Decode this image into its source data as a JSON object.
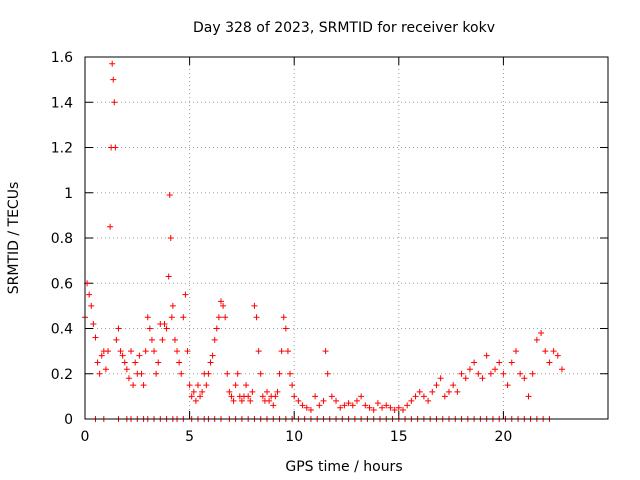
{
  "chart_data": {
    "type": "scatter",
    "title": "Day 328 of 2023, SRMTID for receiver kokv",
    "xlabel": "GPS time / hours",
    "ylabel": "SRMTID / TECUs",
    "xlim": [
      0,
      25
    ],
    "ylim": [
      0,
      1.6
    ],
    "x_ticks": [
      0,
      5,
      10,
      15,
      20
    ],
    "x_tick_labels": [
      "0",
      "5",
      "10",
      "15",
      "20"
    ],
    "y_ticks": [
      0,
      0.2,
      0.4,
      0.6,
      0.8,
      1,
      1.2,
      1.4,
      1.6
    ],
    "y_tick_labels": [
      "0",
      "0.2",
      "0.4",
      "0.6",
      "0.8",
      "1",
      "1.2",
      "1.4",
      "1.6"
    ],
    "grid": true,
    "marker": "plus",
    "color": "#ff0000",
    "series": [
      {
        "name": "SRMTID",
        "x": [
          0.0,
          0.1,
          0.2,
          0.3,
          0.4,
          0.5,
          0.6,
          0.7,
          0.8,
          0.9,
          1.0,
          1.1,
          1.2,
          1.25,
          1.3,
          1.35,
          1.4,
          1.45,
          1.5,
          1.6,
          1.7,
          1.8,
          1.9,
          2.0,
          2.1,
          2.2,
          2.3,
          2.4,
          2.5,
          2.6,
          2.7,
          2.8,
          2.9,
          3.0,
          3.1,
          3.2,
          3.3,
          3.4,
          3.5,
          3.6,
          3.7,
          3.8,
          3.9,
          4.0,
          4.05,
          4.1,
          4.15,
          4.2,
          4.3,
          4.4,
          4.5,
          4.6,
          4.7,
          4.8,
          4.9,
          5.0,
          5.1,
          5.2,
          5.3,
          5.4,
          5.5,
          5.6,
          5.7,
          5.8,
          5.9,
          6.0,
          6.1,
          6.2,
          6.3,
          6.4,
          6.5,
          6.6,
          6.7,
          6.8,
          6.9,
          7.0,
          7.1,
          7.2,
          7.3,
          7.4,
          7.5,
          7.6,
          7.7,
          7.8,
          7.9,
          8.0,
          8.1,
          8.2,
          8.3,
          8.4,
          8.5,
          8.6,
          8.7,
          8.8,
          8.9,
          9.0,
          9.1,
          9.2,
          9.3,
          9.4,
          9.5,
          9.6,
          9.7,
          9.8,
          9.9,
          10.0,
          10.2,
          10.4,
          10.6,
          10.8,
          11.0,
          11.2,
          11.4,
          11.5,
          11.6,
          11.8,
          12.0,
          12.2,
          12.4,
          12.6,
          12.8,
          13.0,
          13.2,
          13.4,
          13.6,
          13.8,
          14.0,
          14.2,
          14.4,
          14.6,
          14.8,
          15.0,
          15.2,
          15.4,
          15.6,
          15.8,
          16.0,
          16.2,
          16.4,
          16.6,
          16.8,
          17.0,
          17.2,
          17.4,
          17.6,
          17.8,
          18.0,
          18.2,
          18.4,
          18.6,
          18.8,
          19.0,
          19.2,
          19.4,
          19.6,
          19.8,
          20.0,
          20.2,
          20.4,
          20.6,
          20.8,
          21.0,
          21.2,
          21.4,
          21.6,
          21.8,
          22.0,
          22.2,
          22.4,
          22.6,
          22.8
        ],
        "y": [
          0.45,
          0.6,
          0.55,
          0.5,
          0.42,
          0.36,
          0.25,
          0.2,
          0.28,
          0.3,
          0.22,
          0.3,
          0.85,
          1.2,
          1.57,
          1.5,
          1.4,
          1.2,
          0.35,
          0.4,
          0.3,
          0.28,
          0.25,
          0.22,
          0.18,
          0.3,
          0.15,
          0.25,
          0.2,
          0.28,
          0.2,
          0.15,
          0.3,
          0.45,
          0.4,
          0.35,
          0.3,
          0.2,
          0.25,
          0.42,
          0.35,
          0.42,
          0.4,
          0.63,
          0.99,
          0.8,
          0.45,
          0.5,
          0.35,
          0.3,
          0.25,
          0.2,
          0.45,
          0.55,
          0.3,
          0.15,
          0.1,
          0.12,
          0.08,
          0.15,
          0.1,
          0.12,
          0.2,
          0.15,
          0.2,
          0.25,
          0.28,
          0.35,
          0.4,
          0.45,
          0.52,
          0.5,
          0.45,
          0.2,
          0.12,
          0.1,
          0.08,
          0.15,
          0.2,
          0.1,
          0.08,
          0.1,
          0.15,
          0.1,
          0.08,
          0.12,
          0.5,
          0.45,
          0.3,
          0.2,
          0.1,
          0.08,
          0.12,
          0.08,
          0.1,
          0.06,
          0.1,
          0.12,
          0.2,
          0.3,
          0.45,
          0.4,
          0.3,
          0.2,
          0.15,
          0.1,
          0.08,
          0.06,
          0.05,
          0.04,
          0.1,
          0.06,
          0.08,
          0.3,
          0.2,
          0.1,
          0.08,
          0.05,
          0.06,
          0.07,
          0.06,
          0.08,
          0.1,
          0.06,
          0.05,
          0.04,
          0.07,
          0.05,
          0.06,
          0.05,
          0.04,
          0.05,
          0.04,
          0.06,
          0.08,
          0.1,
          0.12,
          0.1,
          0.08,
          0.12,
          0.15,
          0.18,
          0.1,
          0.12,
          0.15,
          0.12,
          0.2,
          0.18,
          0.22,
          0.25,
          0.2,
          0.18,
          0.28,
          0.2,
          0.22,
          0.25,
          0.2,
          0.15,
          0.25,
          0.3,
          0.2,
          0.18,
          0.1,
          0.2,
          0.35,
          0.38,
          0.3,
          0.25,
          0.3,
          0.28,
          0.22
        ]
      }
    ],
    "zero_rows_x": [
      0.5,
      0.9,
      1.6,
      2.0,
      2.2,
      2.5,
      2.8,
      3.0,
      3.3,
      3.6,
      3.9,
      4.2,
      4.4,
      4.7,
      5.1,
      5.4,
      5.7,
      5.9,
      6.2,
      6.5,
      6.9,
      7.2,
      7.5,
      7.8,
      8.1,
      8.4,
      8.7,
      9.0,
      9.3,
      9.6,
      9.9,
      10.2,
      10.5,
      10.8,
      11.1,
      11.4,
      11.7,
      12.0,
      12.3,
      12.6,
      12.9,
      13.2,
      13.5,
      13.8,
      14.1,
      14.4,
      14.7,
      15.0,
      15.3,
      15.6,
      15.9,
      16.2,
      16.5,
      16.8,
      17.1,
      17.4,
      17.7,
      18.0,
      18.3,
      18.6,
      18.9,
      19.2,
      19.5,
      19.8,
      20.1,
      20.4,
      20.7,
      21.0,
      21.3,
      21.6,
      21.9,
      22.2
    ]
  }
}
